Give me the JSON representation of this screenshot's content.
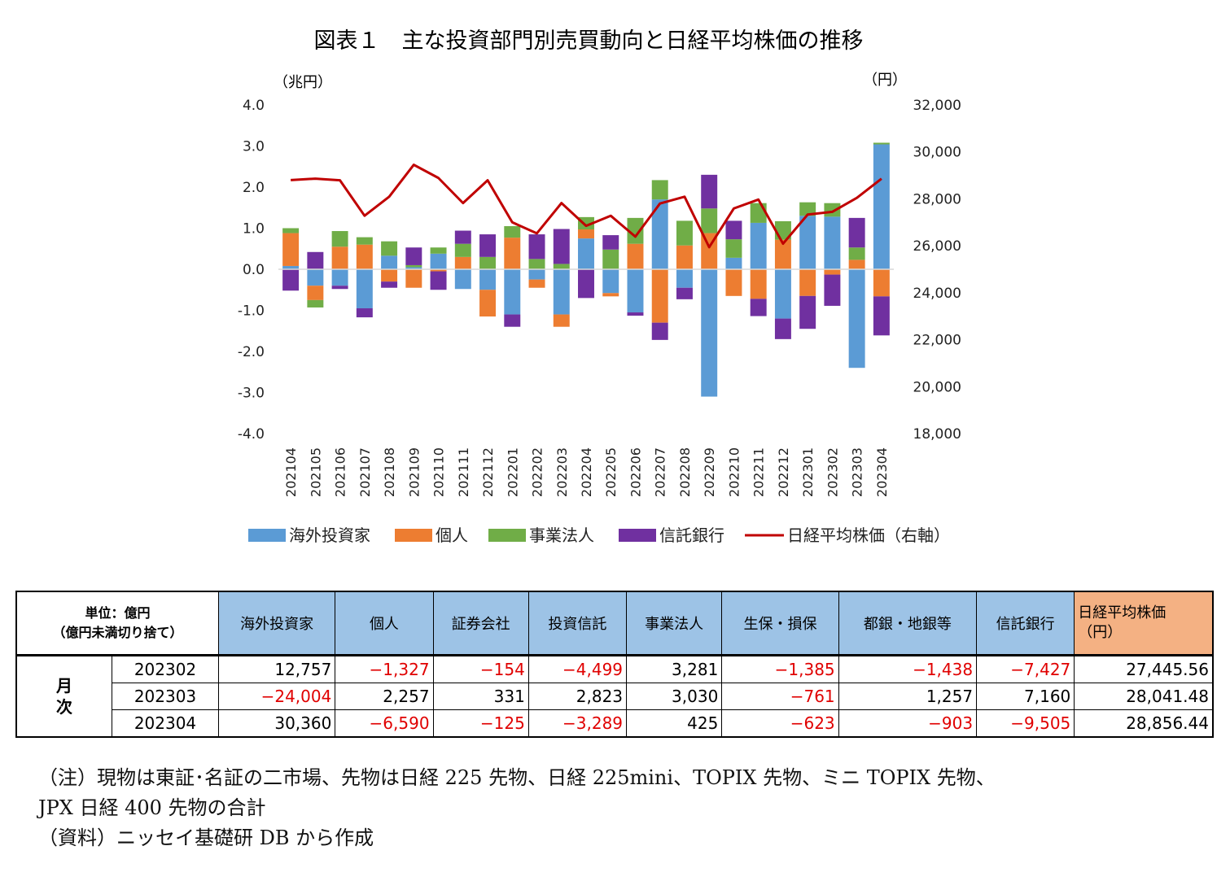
{
  "chart_data": {
    "type": "bar",
    "title": "図表１　主な投資部門別売買動向と日経平均株価の推移",
    "ylabel_left": "（兆円）",
    "ylabel_right": "（円）",
    "ylim_left": [
      -4.0,
      4.0
    ],
    "ylim_right": [
      18000,
      32000
    ],
    "yticks_left": [
      "4.0",
      "3.0",
      "2.0",
      "1.0",
      "0.0",
      "-1.0",
      "-2.0",
      "-3.0",
      "-4.0"
    ],
    "yticks_right": [
      "32,000",
      "30,000",
      "28,000",
      "26,000",
      "24,000",
      "22,000",
      "20,000",
      "18,000"
    ],
    "categories": [
      "202104",
      "202105",
      "202106",
      "202107",
      "202108",
      "202109",
      "202110",
      "202111",
      "202112",
      "202201",
      "202202",
      "202203",
      "202204",
      "202205",
      "202206",
      "202207",
      "202208",
      "202209",
      "202210",
      "202211",
      "202212",
      "202301",
      "202302",
      "202303",
      "202304"
    ],
    "series": [
      {
        "name": "海外投資家",
        "color": "#5b9bd5",
        "values": [
          0.08,
          -0.4,
          -0.4,
          -0.95,
          0.33,
          0.05,
          0.38,
          -0.48,
          -0.5,
          -1.1,
          -0.25,
          -1.1,
          0.75,
          -0.58,
          -1.05,
          1.7,
          -0.45,
          -3.1,
          0.28,
          1.13,
          -1.2,
          1.3,
          1.28,
          -2.4,
          3.04
        ]
      },
      {
        "name": "個人",
        "color": "#ed7d31",
        "values": [
          0.8,
          -0.35,
          0.55,
          0.6,
          -0.3,
          -0.45,
          -0.05,
          0.3,
          -0.65,
          0.77,
          -0.2,
          -0.3,
          0.22,
          -0.08,
          0.62,
          -1.3,
          0.58,
          0.88,
          -0.65,
          -0.72,
          0.72,
          -0.65,
          -0.13,
          0.23,
          -0.66
        ]
      },
      {
        "name": "事業法人",
        "color": "#70ad47",
        "values": [
          0.12,
          -0.18,
          0.38,
          0.18,
          0.35,
          0.05,
          0.15,
          0.32,
          0.3,
          0.28,
          0.25,
          0.13,
          0.3,
          0.48,
          0.63,
          0.47,
          0.6,
          0.6,
          0.45,
          0.48,
          0.45,
          0.33,
          0.33,
          0.3,
          0.04
        ]
      },
      {
        "name": "信託銀行",
        "color": "#7030a0",
        "values": [
          -0.52,
          0.42,
          -0.08,
          -0.22,
          -0.15,
          0.43,
          -0.45,
          0.32,
          0.55,
          -0.3,
          0.6,
          0.85,
          -0.7,
          0.35,
          -0.08,
          -0.42,
          -0.28,
          0.82,
          0.45,
          -0.42,
          -0.5,
          -0.8,
          -0.76,
          0.72,
          -0.95
        ]
      },
      {
        "name": "日経平均株価（右軸）",
        "color": "#c00000",
        "axis": "right",
        "values": [
          28800,
          28860,
          28790,
          27280,
          28090,
          29450,
          28890,
          27820,
          28790,
          27000,
          26530,
          27820,
          26850,
          27280,
          26390,
          27800,
          28090,
          25940,
          27590,
          27970,
          26090,
          27330,
          27445.56,
          28041.48,
          28856.44
        ]
      }
    ]
  },
  "table": {
    "unit_header_line1": "単位：億円",
    "unit_header_line2": "（億円未満切り捨て）",
    "columns": [
      "海外投資家",
      "個人",
      "証券会社",
      "投資信託",
      "事業法人",
      "生保・損保",
      "都銀・地銀等",
      "信託銀行"
    ],
    "nikkei_header_line1": "日経平均株価",
    "nikkei_header_line2": "（円）",
    "side_label": "月\n次",
    "rows": [
      {
        "month": "202302",
        "values": [
          "12,757",
          "−1,327",
          "−154",
          "−4,499",
          "3,281",
          "−1,385",
          "−1,438",
          "−7,427"
        ],
        "nikkei": "27,445.56"
      },
      {
        "month": "202303",
        "values": [
          "−24,004",
          "2,257",
          "331",
          "2,823",
          "3,030",
          "−761",
          "1,257",
          "7,160"
        ],
        "nikkei": "28,041.48"
      },
      {
        "month": "202304",
        "values": [
          "30,360",
          "−6,590",
          "−125",
          "−3,289",
          "425",
          "−623",
          "−903",
          "−9,505"
        ],
        "nikkei": "28,856.44"
      }
    ]
  },
  "notes": {
    "line1": "（注）現物は東証･名証の二市場、先物は日経 225 先物、日経 225mini、TOPIX 先物、ミニ TOPIX 先物、",
    "line2": "JPX 日経 400 先物の合計",
    "line3": "（資料）ニッセイ基礎研 DB から作成"
  }
}
